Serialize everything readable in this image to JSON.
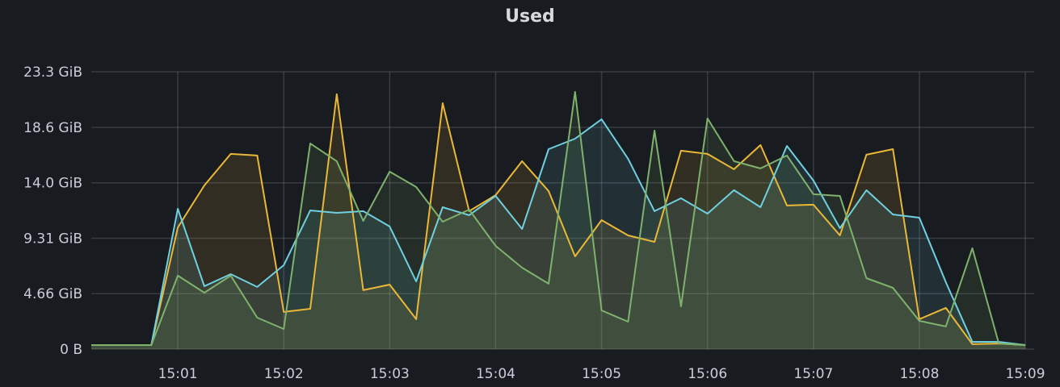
{
  "chart_data": {
    "type": "area",
    "title": "Used",
    "xlabel": "",
    "ylabel": "",
    "ylim": [
      0,
      23.3
    ],
    "xlim": [
      "15:00:11",
      "15:09:05"
    ],
    "grid": true,
    "legend": "none",
    "y_unit": "GiB",
    "y_ticks": [
      {
        "value": 0,
        "label": "0 B"
      },
      {
        "value": 4.66,
        "label": "4.66 GiB"
      },
      {
        "value": 9.31,
        "label": "9.31 GiB"
      },
      {
        "value": 13.97,
        "label": "14.0 GiB"
      },
      {
        "value": 18.63,
        "label": "18.6 GiB"
      },
      {
        "value": 23.3,
        "label": "23.3 GiB"
      }
    ],
    "x_ticks": [
      "15:01",
      "15:02",
      "15:03",
      "15:04",
      "15:05",
      "15:06",
      "15:07",
      "15:08",
      "15:09"
    ],
    "x": [
      "15:00:00",
      "15:00:15",
      "15:00:30",
      "15:00:45",
      "15:01:00",
      "15:01:15",
      "15:01:30",
      "15:01:45",
      "15:02:00",
      "15:02:15",
      "15:02:30",
      "15:02:45",
      "15:03:00",
      "15:03:15",
      "15:03:30",
      "15:03:45",
      "15:04:00",
      "15:04:15",
      "15:04:30",
      "15:04:45",
      "15:05:00",
      "15:05:15",
      "15:05:30",
      "15:05:45",
      "15:06:00",
      "15:06:15",
      "15:06:30",
      "15:06:45",
      "15:07:00",
      "15:07:15",
      "15:07:30",
      "15:07:45",
      "15:08:00",
      "15:08:15",
      "15:08:30",
      "15:08:45",
      "15:09:00"
    ],
    "series": [
      {
        "color": "#EAB839",
        "values": [
          0.34,
          0.34,
          0.34,
          0.34,
          10.23,
          13.75,
          16.4,
          16.26,
          3.12,
          3.39,
          21.41,
          4.95,
          5.42,
          2.51,
          20.66,
          11.59,
          12.94,
          15.79,
          13.28,
          7.79,
          10.84,
          9.55,
          9.01,
          16.67,
          16.4,
          15.11,
          17.14,
          12.06,
          12.13,
          9.55,
          16.33,
          16.8,
          2.51,
          3.46,
          0.41,
          0.47,
          0.34
        ]
      },
      {
        "color": "#6ED0E0",
        "values": [
          0.34,
          0.34,
          0.34,
          0.34,
          11.79,
          5.28,
          6.3,
          5.22,
          7.05,
          11.65,
          11.45,
          11.59,
          10.3,
          5.69,
          11.92,
          11.25,
          12.87,
          10.09,
          16.8,
          17.68,
          19.31,
          15.99,
          11.59,
          12.67,
          11.38,
          13.35,
          11.92,
          17.07,
          14.16,
          10.16,
          13.35,
          11.31,
          11.04,
          5.62,
          0.61,
          0.61,
          0.34
        ]
      },
      {
        "color": "#7EB26D",
        "values": [
          0.34,
          0.34,
          0.34,
          0.34,
          6.17,
          4.74,
          6.17,
          2.64,
          1.69,
          17.28,
          15.79,
          10.77,
          14.91,
          13.62,
          10.7,
          11.72,
          8.67,
          6.84,
          5.49,
          21.61,
          3.25,
          2.3,
          18.36,
          3.59,
          19.38,
          15.79,
          15.18,
          16.26,
          13.01,
          12.87,
          5.96,
          5.15,
          2.37,
          1.9,
          8.47,
          0.47,
          0.34
        ]
      }
    ]
  }
}
